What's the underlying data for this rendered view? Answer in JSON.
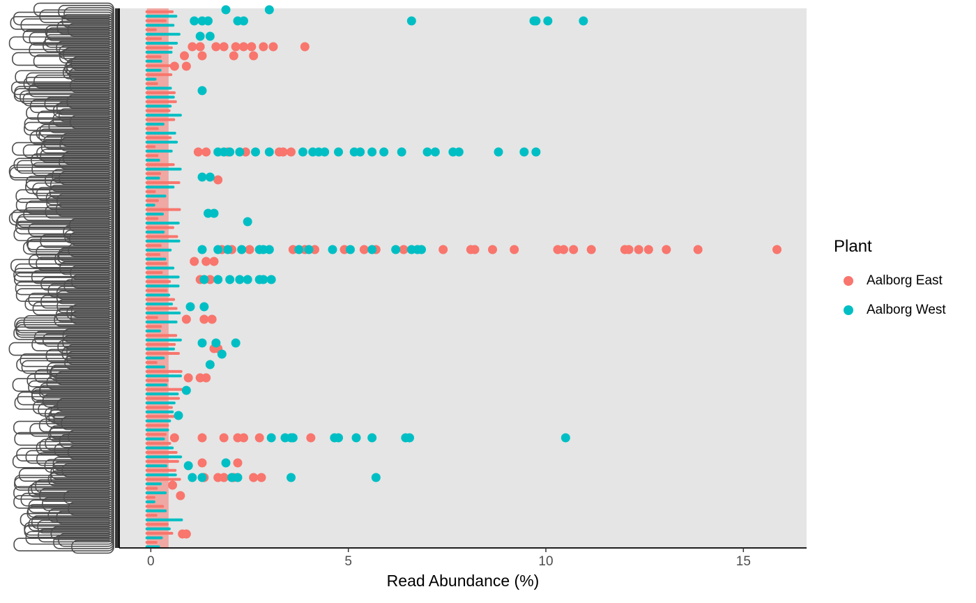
{
  "chart_data": {
    "type": "scatter",
    "title": "",
    "xlabel": "Read Abundance (%)",
    "ylabel": "",
    "xlim": [
      -0.8,
      16.6
    ],
    "x_ticks": [
      0,
      5,
      10,
      15
    ],
    "grid": false,
    "panel_background": "#e5e5e5",
    "legend_position": "right",
    "legend_title": "Plant",
    "y_category_count": 240,
    "y_tick_labels_note_visible": false,
    "series": [
      {
        "name": "Aalborg East",
        "color": "#F8766D",
        "points": [
          [
            1.05,
            67
          ],
          [
            1.25,
            67
          ],
          [
            1.65,
            67
          ],
          [
            1.85,
            67
          ],
          [
            2.15,
            67
          ],
          [
            2.35,
            67
          ],
          [
            2.55,
            67
          ],
          [
            2.85,
            67
          ],
          [
            3.1,
            67
          ],
          [
            3.9,
            67
          ],
          [
            0.85,
            80
          ],
          [
            1.3,
            80
          ],
          [
            2.1,
            80
          ],
          [
            2.6,
            80
          ],
          [
            0.6,
            95
          ],
          [
            0.9,
            95
          ],
          [
            1.2,
            218
          ],
          [
            1.4,
            218
          ],
          [
            1.95,
            218
          ],
          [
            2.4,
            218
          ],
          [
            3.25,
            218
          ],
          [
            3.35,
            218
          ],
          [
            3.55,
            218
          ],
          [
            1.7,
            258
          ],
          [
            1.8,
            358
          ],
          [
            2.05,
            358
          ],
          [
            2.5,
            358
          ],
          [
            3.6,
            358
          ],
          [
            3.9,
            358
          ],
          [
            4.15,
            358
          ],
          [
            4.9,
            358
          ],
          [
            5.4,
            358
          ],
          [
            5.7,
            358
          ],
          [
            6.4,
            358
          ],
          [
            7.4,
            358
          ],
          [
            8.1,
            358
          ],
          [
            8.2,
            358
          ],
          [
            8.65,
            358
          ],
          [
            9.2,
            358
          ],
          [
            10.3,
            358
          ],
          [
            10.45,
            358
          ],
          [
            10.7,
            358
          ],
          [
            11.15,
            358
          ],
          [
            12.0,
            358
          ],
          [
            12.1,
            358
          ],
          [
            12.35,
            358
          ],
          [
            12.6,
            358
          ],
          [
            13.05,
            358
          ],
          [
            13.85,
            358
          ],
          [
            15.85,
            358
          ],
          [
            1.1,
            375
          ],
          [
            1.4,
            375
          ],
          [
            1.6,
            375
          ],
          [
            1.25,
            401
          ],
          [
            1.5,
            401
          ],
          [
            0.9,
            458
          ],
          [
            1.35,
            458
          ],
          [
            1.55,
            458
          ],
          [
            1.6,
            500
          ],
          [
            1.7,
            500
          ],
          [
            0.95,
            542
          ],
          [
            1.25,
            542
          ],
          [
            1.4,
            542
          ],
          [
            0.6,
            628
          ],
          [
            1.3,
            628
          ],
          [
            1.85,
            628
          ],
          [
            2.2,
            628
          ],
          [
            2.35,
            628
          ],
          [
            2.75,
            628
          ],
          [
            4.05,
            628
          ],
          [
            1.3,
            664
          ],
          [
            2.2,
            664
          ],
          [
            1.35,
            685
          ],
          [
            1.7,
            685
          ],
          [
            1.85,
            685
          ],
          [
            2.1,
            685
          ],
          [
            2.6,
            685
          ],
          [
            2.8,
            685
          ],
          [
            0.75,
            711
          ],
          [
            0.55,
            696
          ],
          [
            0.8,
            766
          ],
          [
            0.9,
            766
          ]
        ]
      },
      {
        "name": "Aalborg West",
        "color": "#00BFC4",
        "points": [
          [
            3.0,
            14
          ],
          [
            1.9,
            14
          ],
          [
            1.1,
            30
          ],
          [
            1.3,
            30
          ],
          [
            1.45,
            30
          ],
          [
            2.2,
            30
          ],
          [
            2.35,
            30
          ],
          [
            6.6,
            30
          ],
          [
            9.7,
            30
          ],
          [
            9.75,
            30
          ],
          [
            10.05,
            30
          ],
          [
            10.95,
            30
          ],
          [
            1.5,
            52
          ],
          [
            1.25,
            52
          ],
          [
            1.3,
            130
          ],
          [
            1.7,
            218
          ],
          [
            1.85,
            218
          ],
          [
            2.0,
            218
          ],
          [
            2.25,
            218
          ],
          [
            2.65,
            218
          ],
          [
            3.0,
            218
          ],
          [
            3.85,
            218
          ],
          [
            4.1,
            218
          ],
          [
            4.25,
            218
          ],
          [
            4.4,
            218
          ],
          [
            4.75,
            218
          ],
          [
            5.15,
            218
          ],
          [
            5.3,
            218
          ],
          [
            5.6,
            218
          ],
          [
            5.9,
            218
          ],
          [
            6.35,
            218
          ],
          [
            7.0,
            218
          ],
          [
            7.2,
            218
          ],
          [
            7.65,
            218
          ],
          [
            7.8,
            218
          ],
          [
            8.8,
            218
          ],
          [
            9.45,
            218
          ],
          [
            9.75,
            218
          ],
          [
            1.3,
            254
          ],
          [
            1.5,
            254
          ],
          [
            1.45,
            306
          ],
          [
            1.6,
            306
          ],
          [
            2.45,
            318
          ],
          [
            1.3,
            358
          ],
          [
            1.7,
            358
          ],
          [
            1.95,
            358
          ],
          [
            2.3,
            358
          ],
          [
            2.75,
            358
          ],
          [
            2.85,
            358
          ],
          [
            3.0,
            358
          ],
          [
            3.75,
            358
          ],
          [
            4.0,
            358
          ],
          [
            4.6,
            358
          ],
          [
            5.05,
            358
          ],
          [
            5.6,
            358
          ],
          [
            6.2,
            358
          ],
          [
            6.6,
            358
          ],
          [
            6.75,
            358
          ],
          [
            6.85,
            358
          ],
          [
            1.35,
            401
          ],
          [
            1.7,
            401
          ],
          [
            2.0,
            401
          ],
          [
            2.25,
            401
          ],
          [
            2.45,
            401
          ],
          [
            2.75,
            401
          ],
          [
            2.85,
            401
          ],
          [
            3.05,
            401
          ],
          [
            1.0,
            440
          ],
          [
            1.35,
            440
          ],
          [
            1.3,
            492
          ],
          [
            1.65,
            492
          ],
          [
            2.15,
            492
          ],
          [
            1.8,
            508
          ],
          [
            1.5,
            523
          ],
          [
            0.9,
            560
          ],
          [
            0.7,
            596
          ],
          [
            3.05,
            628
          ],
          [
            3.4,
            628
          ],
          [
            3.55,
            628
          ],
          [
            3.6,
            628
          ],
          [
            4.65,
            628
          ],
          [
            4.75,
            628
          ],
          [
            5.2,
            628
          ],
          [
            5.6,
            628
          ],
          [
            6.45,
            628
          ],
          [
            6.55,
            628
          ],
          [
            10.5,
            628
          ],
          [
            1.9,
            664
          ],
          [
            0.95,
            668
          ],
          [
            1.05,
            685
          ],
          [
            1.3,
            685
          ],
          [
            2.05,
            685
          ],
          [
            2.2,
            685
          ],
          [
            3.55,
            685
          ],
          [
            5.7,
            685
          ]
        ]
      }
    ]
  }
}
